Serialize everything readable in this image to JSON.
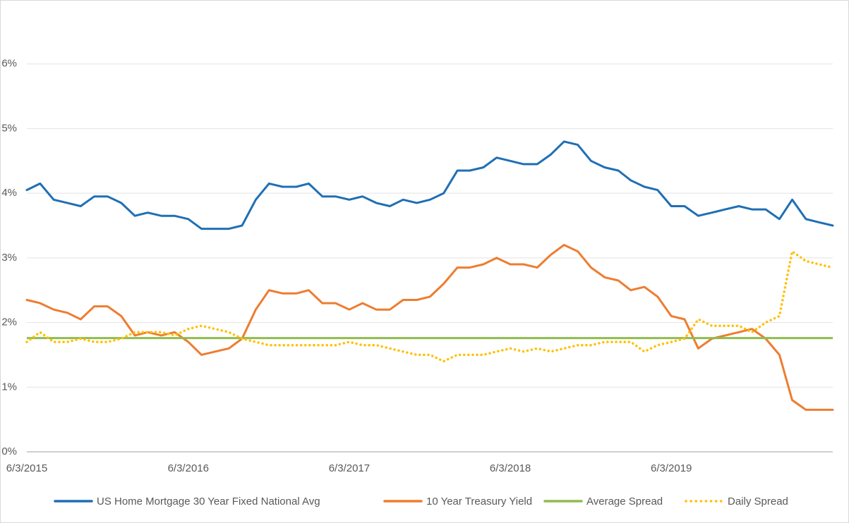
{
  "chart_data": {
    "type": "line",
    "x": [
      "6/3/2015",
      "7/3/2015",
      "8/3/2015",
      "9/3/2015",
      "10/3/2015",
      "11/3/2015",
      "12/3/2015",
      "1/3/2016",
      "2/3/2016",
      "3/3/2016",
      "4/3/2016",
      "5/3/2016",
      "6/3/2016",
      "7/3/2016",
      "8/3/2016",
      "9/3/2016",
      "10/3/2016",
      "11/3/2016",
      "12/3/2016",
      "1/3/2017",
      "2/3/2017",
      "3/3/2017",
      "4/3/2017",
      "5/3/2017",
      "6/3/2017",
      "7/3/2017",
      "8/3/2017",
      "9/3/2017",
      "10/3/2017",
      "11/3/2017",
      "12/3/2017",
      "1/3/2018",
      "2/3/2018",
      "3/3/2018",
      "4/3/2018",
      "5/3/2018",
      "6/3/2018",
      "7/3/2018",
      "8/3/2018",
      "9/3/2018",
      "10/3/2018",
      "11/3/2018",
      "12/3/2018",
      "1/3/2019",
      "2/3/2019",
      "3/3/2019",
      "4/3/2019",
      "5/3/2019",
      "6/3/2019",
      "7/3/2019",
      "8/3/2019",
      "9/3/2019",
      "10/3/2019",
      "11/3/2019",
      "12/3/2019",
      "1/3/2020",
      "2/3/2020",
      "3/3/2020",
      "4/3/2020",
      "5/3/2020",
      "6/3/2020"
    ],
    "series": [
      {
        "name": "US Home Mortgage 30 Year Fixed National Avg",
        "color": "#1f6fb4",
        "style": "solid",
        "values": [
          4.05,
          4.15,
          3.9,
          3.85,
          3.8,
          3.95,
          3.95,
          3.85,
          3.65,
          3.7,
          3.65,
          3.65,
          3.6,
          3.45,
          3.45,
          3.45,
          3.5,
          3.9,
          4.15,
          4.1,
          4.1,
          4.15,
          3.95,
          3.95,
          3.9,
          3.95,
          3.85,
          3.8,
          3.9,
          3.85,
          3.9,
          4.0,
          4.35,
          4.35,
          4.4,
          4.55,
          4.5,
          4.45,
          4.45,
          4.6,
          4.8,
          4.75,
          4.5,
          4.4,
          4.35,
          4.2,
          4.1,
          4.05,
          3.8,
          3.8,
          3.65,
          3.7,
          3.75,
          3.8,
          3.75,
          3.75,
          3.6,
          3.9,
          3.6,
          3.55,
          3.5
        ]
      },
      {
        "name": "10 Year Treasury Yield",
        "color": "#ed7d31",
        "style": "solid",
        "values": [
          2.35,
          2.3,
          2.2,
          2.15,
          2.05,
          2.25,
          2.25,
          2.1,
          1.8,
          1.85,
          1.8,
          1.85,
          1.7,
          1.5,
          1.55,
          1.6,
          1.75,
          2.2,
          2.5,
          2.45,
          2.45,
          2.5,
          2.3,
          2.3,
          2.2,
          2.3,
          2.2,
          2.2,
          2.35,
          2.35,
          2.4,
          2.6,
          2.85,
          2.85,
          2.9,
          3.0,
          2.9,
          2.9,
          2.85,
          3.05,
          3.2,
          3.1,
          2.85,
          2.7,
          2.65,
          2.5,
          2.55,
          2.4,
          2.1,
          2.05,
          1.6,
          1.75,
          1.8,
          1.85,
          1.9,
          1.75,
          1.5,
          0.8,
          0.65,
          0.65,
          0.65
        ]
      },
      {
        "name": "Average Spread",
        "color": "#8fbc4f",
        "style": "constant",
        "value": 1.76
      },
      {
        "name": "Daily Spread",
        "color": "#ffc000",
        "style": "dotted",
        "values": [
          1.7,
          1.85,
          1.7,
          1.7,
          1.75,
          1.7,
          1.7,
          1.75,
          1.85,
          1.85,
          1.85,
          1.8,
          1.9,
          1.95,
          1.9,
          1.85,
          1.75,
          1.7,
          1.65,
          1.65,
          1.65,
          1.65,
          1.65,
          1.65,
          1.7,
          1.65,
          1.65,
          1.6,
          1.55,
          1.5,
          1.5,
          1.4,
          1.5,
          1.5,
          1.5,
          1.55,
          1.6,
          1.55,
          1.6,
          1.55,
          1.6,
          1.65,
          1.65,
          1.7,
          1.7,
          1.7,
          1.55,
          1.65,
          1.7,
          1.75,
          2.05,
          1.95,
          1.95,
          1.95,
          1.85,
          2.0,
          2.1,
          3.1,
          2.95,
          2.9,
          2.85
        ]
      }
    ],
    "xlim": [
      "6/3/2015",
      "6/3/2020"
    ],
    "xticks": [
      "6/3/2015",
      "6/3/2016",
      "6/3/2017",
      "6/3/2018",
      "6/3/2019"
    ],
    "ylim": [
      0,
      7
    ],
    "yticks": [
      {
        "value": 0,
        "label": "0%"
      },
      {
        "value": 1,
        "label": "1%"
      },
      {
        "value": 2,
        "label": "2%"
      },
      {
        "value": 3,
        "label": "3%"
      },
      {
        "value": 4,
        "label": "4%"
      },
      {
        "value": 5,
        "label": "5%"
      },
      {
        "value": 6,
        "label": "6%"
      }
    ],
    "grid": true,
    "legend": "bottom"
  }
}
